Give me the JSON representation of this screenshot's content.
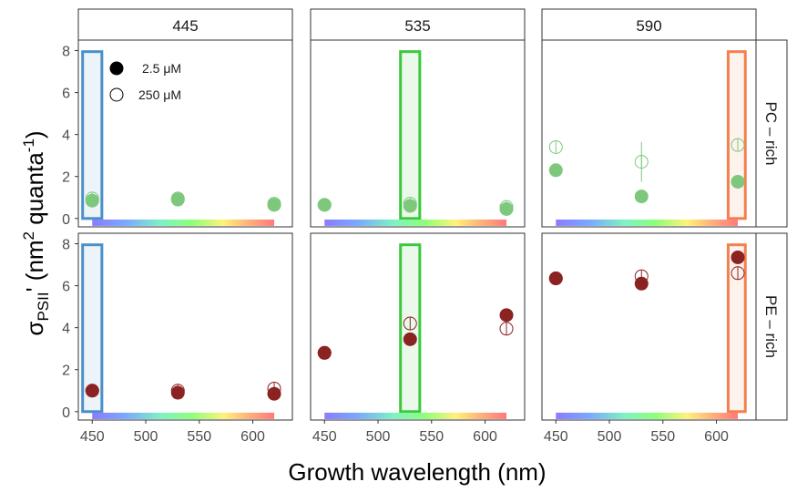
{
  "chart_data": {
    "type": "scatter",
    "x_axis_label": "Growth wavelength (nm)",
    "y_axis_label": {
      "main": "σ",
      "sub": "PSII",
      "rest": "' (nm",
      "sup1": "2",
      "rest2": " quanta",
      "sup2": "-1",
      "end": ")"
    },
    "xlim": [
      437,
      637
    ],
    "ylim": [
      -0.4,
      8.5
    ],
    "x_ticks": [
      450,
      500,
      550,
      600
    ],
    "y_ticks": [
      0,
      2,
      4,
      6,
      8
    ],
    "columns": [
      "445",
      "535",
      "590"
    ],
    "rows": [
      "PC – rich",
      "PE – rich"
    ],
    "legend": [
      {
        "label": "2.5 μM",
        "style": "filled"
      },
      {
        "label": "250 μM",
        "style": "open"
      }
    ],
    "highlight_bands": [
      {
        "column": "445",
        "x_range": [
          441,
          459
        ],
        "color": "#4a90c8"
      },
      {
        "column": "535",
        "x_range": [
          521,
          539
        ],
        "color": "#3cc83c"
      },
      {
        "column": "590",
        "x_range": [
          611,
          627
        ],
        "color": "#f4804e"
      }
    ],
    "spectrum_bar_range": [
      450,
      620
    ],
    "row_colors": {
      "PC – rich": "#7dc87d",
      "PE – rich": "#8b2323"
    },
    "panels": [
      {
        "row": "PC – rich",
        "column": "445",
        "filled": [
          [
            450,
            0.85
          ],
          [
            530,
            0.9
          ],
          [
            620,
            0.65
          ]
        ],
        "open": [
          [
            450,
            0.95
          ],
          [
            530,
            0.95
          ],
          [
            620,
            0.7
          ]
        ]
      },
      {
        "row": "PC – rich",
        "column": "535",
        "filled": [
          [
            450,
            0.65
          ],
          [
            530,
            0.6
          ],
          [
            620,
            0.45
          ]
        ],
        "open": [
          [
            450,
            0.65
          ],
          [
            530,
            0.7
          ],
          [
            620,
            0.55
          ]
        ]
      },
      {
        "row": "PC – rich",
        "column": "590",
        "filled": [
          [
            450,
            2.3
          ],
          [
            530,
            1.05
          ],
          [
            620,
            1.75
          ]
        ],
        "open": [
          [
            450,
            3.4
          ],
          [
            530,
            2.7
          ],
          [
            620,
            3.5
          ]
        ],
        "error_bars": [
          {
            "x": 530,
            "low": 1.75,
            "high": 3.65
          }
        ]
      },
      {
        "row": "PE – rich",
        "column": "445",
        "filled": [
          [
            450,
            1.0
          ],
          [
            530,
            0.9
          ],
          [
            620,
            0.85
          ]
        ],
        "open": [
          [
            450,
            1.0
          ],
          [
            530,
            1.0
          ],
          [
            620,
            1.1
          ]
        ]
      },
      {
        "row": "PE – rich",
        "column": "535",
        "filled": [
          [
            450,
            2.8
          ],
          [
            530,
            3.45
          ],
          [
            620,
            4.6
          ]
        ],
        "open": [
          [
            450,
            2.8
          ],
          [
            530,
            4.2
          ],
          [
            620,
            3.95
          ]
        ]
      },
      {
        "row": "PE – rich",
        "column": "590",
        "filled": [
          [
            450,
            6.35
          ],
          [
            530,
            6.1
          ],
          [
            620,
            7.35
          ]
        ],
        "open": [
          [
            450,
            6.35
          ],
          [
            530,
            6.45
          ],
          [
            620,
            6.6
          ]
        ]
      }
    ]
  }
}
